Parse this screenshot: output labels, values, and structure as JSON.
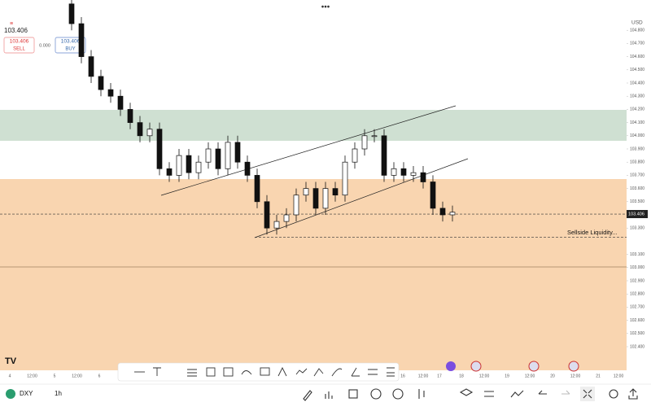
{
  "header": {
    "price": "103.406",
    "sell": {
      "price": "103.406",
      "label": "SELL"
    },
    "spread": "0.000",
    "buy": {
      "price": "103.406",
      "label": "BUY"
    },
    "currency": "USD"
  },
  "chart_data": {
    "type": "candlestick",
    "open": [
      105.0,
      104.85,
      104.6,
      104.45,
      104.35,
      104.3,
      104.2,
      104.1,
      104.0,
      104.05,
      103.75,
      103.7,
      103.85,
      103.72,
      103.8,
      103.9,
      103.75,
      103.95,
      103.8,
      103.7,
      103.5,
      103.3,
      103.35,
      103.4,
      103.55,
      103.6,
      103.45,
      103.6,
      103.55,
      103.8,
      103.9,
      104.0,
      104.0,
      103.7,
      103.75,
      103.7,
      103.72,
      103.65,
      103.45,
      103.4
    ],
    "high": [
      105.05,
      104.9,
      104.65,
      104.5,
      104.4,
      104.35,
      104.25,
      104.15,
      104.1,
      104.1,
      103.8,
      103.9,
      103.9,
      103.85,
      103.95,
      103.95,
      104.0,
      104.0,
      103.85,
      103.75,
      103.55,
      103.4,
      103.45,
      103.6,
      103.65,
      103.65,
      103.65,
      103.65,
      103.85,
      103.95,
      104.05,
      104.05,
      104.05,
      103.8,
      103.8,
      103.77,
      103.77,
      103.7,
      103.5,
      103.47
    ],
    "low": [
      104.8,
      104.55,
      104.4,
      104.3,
      104.25,
      104.15,
      104.05,
      103.95,
      103.95,
      103.7,
      103.65,
      103.65,
      103.67,
      103.67,
      103.75,
      103.7,
      103.7,
      103.75,
      103.65,
      103.45,
      103.25,
      103.25,
      103.3,
      103.35,
      103.5,
      103.4,
      103.4,
      103.5,
      103.5,
      103.75,
      103.85,
      103.95,
      103.65,
      103.65,
      103.65,
      103.65,
      103.6,
      103.4,
      103.35,
      103.35
    ],
    "close": [
      104.85,
      104.6,
      104.45,
      104.35,
      104.3,
      104.2,
      104.1,
      104.0,
      104.05,
      103.75,
      103.7,
      103.85,
      103.72,
      103.8,
      103.9,
      103.75,
      103.95,
      103.8,
      103.7,
      103.5,
      103.3,
      103.35,
      103.4,
      103.55,
      103.6,
      103.45,
      103.6,
      103.55,
      103.8,
      103.9,
      104.0,
      104.0,
      103.7,
      103.75,
      103.7,
      103.72,
      103.65,
      103.45,
      103.4,
      103.42
    ],
    "yticks": [
      {
        "value": 104.8,
        "label": "104.800"
      },
      {
        "value": 104.7,
        "label": "104.700"
      },
      {
        "value": 104.6,
        "label": "104.600"
      },
      {
        "value": 104.5,
        "label": "104.500"
      },
      {
        "value": 104.4,
        "label": "104.400"
      },
      {
        "value": 104.3,
        "label": "104.300"
      },
      {
        "value": 104.2,
        "label": "104.200"
      },
      {
        "value": 104.1,
        "label": "104.100"
      },
      {
        "value": 104.0,
        "label": "104.000"
      },
      {
        "value": 103.9,
        "label": "103.900"
      },
      {
        "value": 103.8,
        "label": "103.800"
      },
      {
        "value": 103.7,
        "label": "103.700"
      },
      {
        "value": 103.6,
        "label": "103.600"
      },
      {
        "value": 103.5,
        "label": "103.500"
      },
      {
        "value": 103.3,
        "label": "103.300"
      },
      {
        "value": 103.1,
        "label": "103.100"
      },
      {
        "value": 103.0,
        "label": "103.000"
      },
      {
        "value": 102.9,
        "label": "102.900"
      },
      {
        "value": 102.8,
        "label": "102.800"
      },
      {
        "value": 102.7,
        "label": "102.700"
      },
      {
        "value": 102.6,
        "label": "102.600"
      },
      {
        "value": 102.5,
        "label": "102.500"
      },
      {
        "value": 102.4,
        "label": "102.400"
      }
    ],
    "xlabels_left": [
      "4",
      "12:00",
      "5",
      "12:00",
      "6"
    ],
    "xlabels_right": [
      "16",
      "12:00",
      "17",
      "18",
      "12:00",
      "19",
      "12:00",
      "20",
      "12:00",
      "21",
      "12:00"
    ],
    "current_price": {
      "value": 103.406,
      "label": "103.406"
    },
    "liquidity": {
      "value": 103.23,
      "label": "Sellside Liquidity..."
    }
  },
  "footer": {
    "symbol": "DXY",
    "interval": "1h"
  }
}
